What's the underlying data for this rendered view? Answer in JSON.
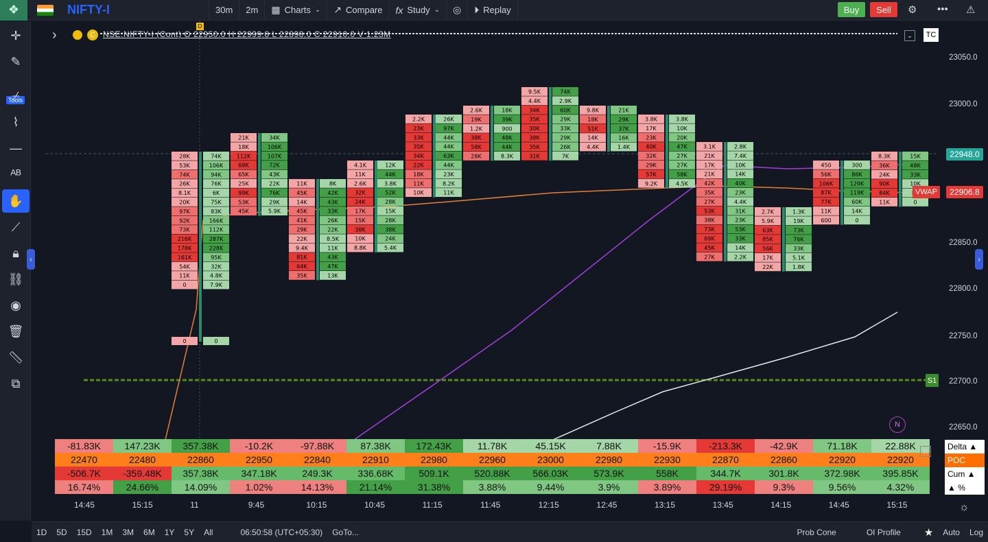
{
  "topbar": {
    "symbol": "NIFTY-I",
    "interval": "30m",
    "interval2": "2m",
    "charts_label": "Charts",
    "compare_label": "Compare",
    "study_label": "Study",
    "replay_label": "Replay",
    "buy_label": "Buy",
    "sell_label": "Sell"
  },
  "leftbar": {
    "tools_label": "Tools"
  },
  "legend": {
    "text": "NSE:NIFTY-I (Cont) O 22950.0 H 22999.8 L 22898.0 C 22910.0 V 1.23M"
  },
  "badges": {
    "tc": "TC",
    "d": "D",
    "s1": "S1",
    "n": "N",
    "vwap": "VWAP"
  },
  "price_axis": {
    "labels": [
      "23050.0",
      "23000.0",
      "22850.0",
      "22800.0",
      "22750.0",
      "22700.0",
      "22650.0"
    ],
    "current": "22948.0",
    "vwap_value": "22906.8"
  },
  "time_axis": [
    "14:45",
    "15:15",
    "11",
    "9:45",
    "10:15",
    "10:45",
    "11:15",
    "11:45",
    "12:15",
    "12:45",
    "13:15",
    "13:45",
    "14:15",
    "14:45",
    "15:15"
  ],
  "table": {
    "delta": [
      "-81.83K",
      "147.23K",
      "357.38K",
      "-10.2K",
      "-97.88K",
      "87.38K",
      "172.43K",
      "11.78K",
      "45.15K",
      "7.88K",
      "-15.9K",
      "-213.3K",
      "-42.9K",
      "71.18K",
      "22.88K"
    ],
    "poc": [
      "22470",
      "22480",
      "22860",
      "22950",
      "22840",
      "22910",
      "22980",
      "22960",
      "23000",
      "22980",
      "22930",
      "22870",
      "22860",
      "22920",
      "22920"
    ],
    "cum": [
      "-506.7K",
      "-359.48K",
      "357.38K",
      "347.18K",
      "249.3K",
      "336.68K",
      "509.1K",
      "520.88K",
      "566.03K",
      "573.9K",
      "558K",
      "344.7K",
      "301.8K",
      "372.98K",
      "395.85K"
    ],
    "pct": [
      "16.74%",
      "24.66%",
      "14.09%",
      "1.02%",
      "14.13%",
      "21.14%",
      "31.38%",
      "3.88%",
      "9.44%",
      "3.9%",
      "3.89%",
      "29.19%",
      "9.3%",
      "9.56%",
      "4.32%"
    ],
    "labels": {
      "delta": "Delta ▲",
      "poc": "POC",
      "cum": "Cum ▲",
      "pct": "▲ %"
    }
  },
  "bottombar": {
    "ranges": [
      "1D",
      "5D",
      "15D",
      "1M",
      "3M",
      "6M",
      "1Y",
      "5Y",
      "All"
    ],
    "clock": "06:50:58 (UTC+05:30)",
    "goto": "GoTo...",
    "prob_cone": "Prob Cone",
    "oi_profile": "OI Profile",
    "auto": "Auto",
    "log": "Log"
  },
  "footprint": [
    {
      "x": 250,
      "topY": 221,
      "cells": [
        "28K",
        "53K",
        "74K",
        "26K",
        "8.1K",
        "20K",
        "97K",
        "92K",
        "73K",
        "216K",
        "178K",
        "161K",
        "54K",
        "11K",
        "0"
      ],
      "side": "sell"
    },
    {
      "x": 296,
      "topY": 221,
      "cells": [
        "74K",
        "106K",
        "94K",
        "76K",
        "6K",
        "75K",
        "83K",
        "166K",
        "112K",
        "287K",
        "228K",
        "95K",
        "32K",
        "4.8K",
        "7.9K"
      ],
      "side": "buy"
    },
    {
      "x": 336,
      "topY": 194,
      "cells": [
        "21K",
        "18K",
        "112K",
        "68K",
        "65K",
        "25K",
        "99K",
        "53K",
        "45K"
      ],
      "side": "sell"
    },
    {
      "x": 381,
      "topY": 194,
      "cells": [
        "34K",
        "106K",
        "107K",
        "72K",
        "43K",
        "22K",
        "76K",
        "29K",
        "5.9K"
      ],
      "side": "buy"
    },
    {
      "x": 421,
      "topY": 261,
      "cells": [
        "11K",
        "45K",
        "14K",
        "45K",
        "41K",
        "29K",
        "22K",
        "9.4K",
        "81K",
        "64K",
        "35K"
      ],
      "side": "sell"
    },
    {
      "x": 466,
      "topY": 261,
      "cells": [
        "8K",
        "42K",
        "43K",
        "33K",
        "26K",
        "22K",
        "8.5K",
        "11K",
        "43K",
        "47K",
        "13K"
      ],
      "side": "buy"
    },
    {
      "x": 506,
      "topY": 234,
      "cells": [
        "4.1K",
        "11K",
        "2.6K",
        "32K",
        "24K",
        "17K",
        "15K",
        "38K",
        "10K",
        "8.8K"
      ],
      "side": "sell"
    },
    {
      "x": 550,
      "topY": 234,
      "cells": [
        "12K",
        "44K",
        "3.8K",
        "52K",
        "28K",
        "15K",
        "28K",
        "38K",
        "24K",
        "5.4K"
      ],
      "side": "buy"
    },
    {
      "x": 591,
      "topY": 167,
      "cells": [
        "2.2K",
        "23K",
        "33K",
        "35K",
        "34K",
        "22K",
        "18K",
        "11K",
        "10K"
      ],
      "side": "sell"
    },
    {
      "x": 635,
      "topY": 167,
      "cells": [
        "26K",
        "97K",
        "44K",
        "44K",
        "63K",
        "44K",
        "23K",
        "8.2K",
        "11K"
      ],
      "side": "buy"
    },
    {
      "x": 675,
      "topY": 154,
      "cells": [
        "2.6K",
        "19K",
        "1.2K",
        "38K",
        "58K",
        "28K"
      ],
      "side": "sell"
    },
    {
      "x": 720,
      "topY": 154,
      "cells": [
        "18K",
        "39K",
        "900",
        "48K",
        "44K",
        "8.3K"
      ],
      "side": "buy"
    },
    {
      "x": 760,
      "topY": 127,
      "cells": [
        "9.5K",
        "4.4K",
        "34K",
        "35K",
        "30K",
        "38K",
        "35K",
        "31K"
      ],
      "side": "sell"
    },
    {
      "x": 805,
      "topY": 127,
      "cells": [
        "74K",
        "2.9K",
        "60K",
        "29K",
        "33K",
        "29K",
        "26K",
        "7K"
      ],
      "side": "buy"
    },
    {
      "x": 845,
      "topY": 154,
      "cells": [
        "9.8K",
        "18K",
        "51K",
        "14K",
        "4.4K"
      ],
      "side": "sell"
    },
    {
      "x": 890,
      "topY": 154,
      "cells": [
        "21K",
        "29K",
        "37K",
        "16K",
        "1.4K"
      ],
      "side": "buy"
    },
    {
      "x": 930,
      "topY": 167,
      "cells": [
        "3.8K",
        "17K",
        "23K",
        "40K",
        "32K",
        "29K",
        "57K",
        "9.2K"
      ],
      "side": "sell"
    },
    {
      "x": 975,
      "topY": 167,
      "cells": [
        "3.8K",
        "10K",
        "20K",
        "47K",
        "27K",
        "27K",
        "58K",
        "4.5K"
      ],
      "side": "buy"
    },
    {
      "x": 1015,
      "topY": 207,
      "cells": [
        "3.1K",
        "21K",
        "17K",
        "21K",
        "42K",
        "35K",
        "27K",
        "53K",
        "38K",
        "73K",
        "69K",
        "45K",
        "27K"
      ],
      "side": "sell"
    },
    {
      "x": 1060,
      "topY": 207,
      "cells": [
        "2.8K",
        "7.4K",
        "10K",
        "14K",
        "40K",
        "23K",
        "4.4K",
        "31K",
        "23K",
        "53K",
        "33K",
        "14K",
        "2.2K"
      ],
      "side": "buy"
    },
    {
      "x": 1100,
      "topY": 302,
      "cells": [
        "2.7K",
        "5.9K",
        "63K",
        "85K",
        "56K",
        "17K",
        "22K"
      ],
      "side": "sell"
    },
    {
      "x": 1145,
      "topY": 302,
      "cells": [
        "1.3K",
        "19K",
        "73K",
        "76K",
        "33K",
        "5.1K",
        "1.8K"
      ],
      "side": "buy"
    },
    {
      "x": 1185,
      "topY": 234,
      "cells": [
        "450",
        "56K",
        "106K",
        "87K",
        "77K",
        "11K",
        "600"
      ],
      "side": "sell"
    },
    {
      "x": 1230,
      "topY": 234,
      "cells": [
        "300",
        "86K",
        "129K",
        "119K",
        "60K",
        "14K",
        "0"
      ],
      "side": "buy"
    },
    {
      "x": 1270,
      "topY": 221,
      "cells": [
        "8.3K",
        "36K",
        "24K",
        "90K",
        "84K",
        "11K"
      ],
      "side": "sell"
    },
    {
      "x": 1315,
      "topY": 221,
      "cells": [
        "15K",
        "48K",
        "33K",
        "10K",
        "8K",
        "0"
      ],
      "side": "buy"
    }
  ]
}
